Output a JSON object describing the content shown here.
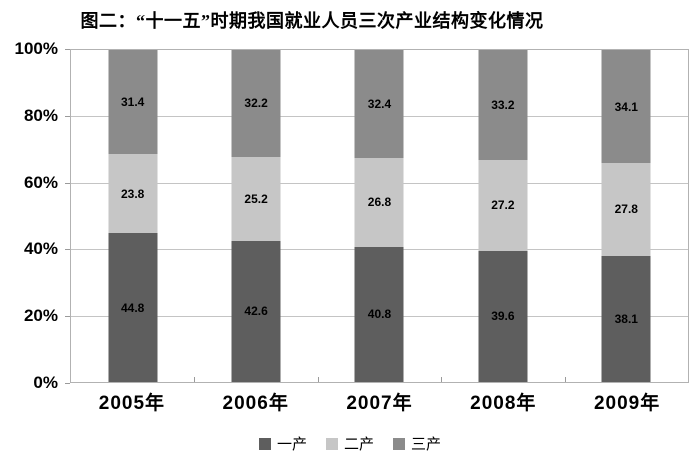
{
  "title": "图二：“十一五”时期我国就业人员三次产业结构变化情况",
  "chart_data": {
    "type": "bar",
    "stacked": true,
    "percent_stacked": true,
    "title": "图二：“十一五”时期我国就业人员三次产业结构变化情况",
    "categories": [
      "2005年",
      "2006年",
      "2007年",
      "2008年",
      "2009年"
    ],
    "series": [
      {
        "name": "一产",
        "color": "#5e5e5e",
        "values": [
          44.8,
          42.6,
          40.8,
          39.6,
          38.1
        ]
      },
      {
        "name": "二产",
        "color": "#c6c6c6",
        "values": [
          23.8,
          25.2,
          26.8,
          27.2,
          27.8
        ]
      },
      {
        "name": "三产",
        "color": "#8b8b8b",
        "values": [
          31.4,
          32.2,
          32.4,
          33.2,
          34.1
        ]
      }
    ],
    "ylim": [
      0,
      100
    ],
    "y_tick_values": [
      0,
      20,
      40,
      60,
      80,
      100
    ],
    "y_tick_labels": [
      "0%",
      "20%",
      "40%",
      "60%",
      "80%",
      "100%"
    ],
    "xlabel": "",
    "ylabel": "",
    "grid": true,
    "legend_position": "bottom"
  },
  "colors": {
    "gridline": "#c4c4c4",
    "frame": "#b2b2b2",
    "tick": "#9a9a9a",
    "text": "#000000",
    "background": "#ffffff"
  }
}
